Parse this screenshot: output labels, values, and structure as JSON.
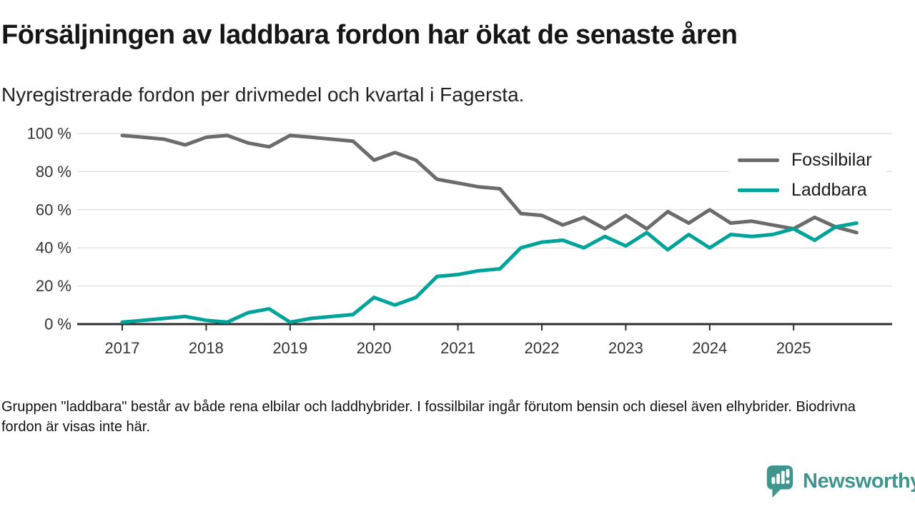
{
  "header": {
    "title": "Försäljningen av laddbara fordon har ökat de senaste åren",
    "subtitle": "Nyregistrerade fordon per drivmedel och kvartal i Fagersta."
  },
  "chart_data": {
    "type": "line",
    "title": "Försäljningen av laddbara fordon har ökat de senaste åren",
    "subtitle": "Nyregistrerade fordon per drivmedel och kvartal i Fagersta.",
    "x_unit": "quarter",
    "x_start": "2017 Q1",
    "x_end": "2025 Q4",
    "x_tick_labels": [
      "2017",
      "2018",
      "2019",
      "2020",
      "2021",
      "2022",
      "2023",
      "2024",
      "2025"
    ],
    "y_tick_values": [
      0,
      20,
      40,
      60,
      80,
      100
    ],
    "y_tick_labels": [
      "0 %",
      "20 %",
      "40 %",
      "60 %",
      "80 %",
      "100 %"
    ],
    "ylim": [
      0,
      100
    ],
    "grid": "horizontal",
    "legend_position": "top-right",
    "series": [
      {
        "name": "Fossilbilar",
        "color": "#6b6b6b",
        "values": [
          99,
          98,
          97,
          94,
          98,
          99,
          95,
          93,
          99,
          98,
          97,
          96,
          86,
          90,
          86,
          76,
          74,
          72,
          71,
          58,
          57,
          52,
          56,
          50,
          57,
          50,
          59,
          53,
          60,
          53,
          54,
          52,
          50,
          56,
          51,
          48
        ]
      },
      {
        "name": "Laddbara",
        "color": "#00a39a",
        "values": [
          1,
          2,
          3,
          4,
          2,
          1,
          6,
          8,
          1,
          3,
          4,
          5,
          14,
          10,
          14,
          25,
          26,
          28,
          29,
          40,
          43,
          44,
          40,
          46,
          41,
          48,
          39,
          47,
          40,
          47,
          46,
          47,
          50,
          44,
          51,
          53
        ]
      }
    ]
  },
  "axis_style": {
    "grid_color": "#e2e2e2",
    "axis_color": "#2e2e2e",
    "tick_label_color": "#333333"
  },
  "footnote": {
    "text": "Gruppen \"laddbara\" består av både rena elbilar och laddhybrider. I fossilbilar ingår förutom bensin och diesel även elhybrider. Biodrivna fordon är visas inte här."
  },
  "branding": {
    "wordmark": "Newsworthy",
    "color": "#3f948e",
    "icon": "newsworthy-speech-bubble-chart-icon"
  }
}
